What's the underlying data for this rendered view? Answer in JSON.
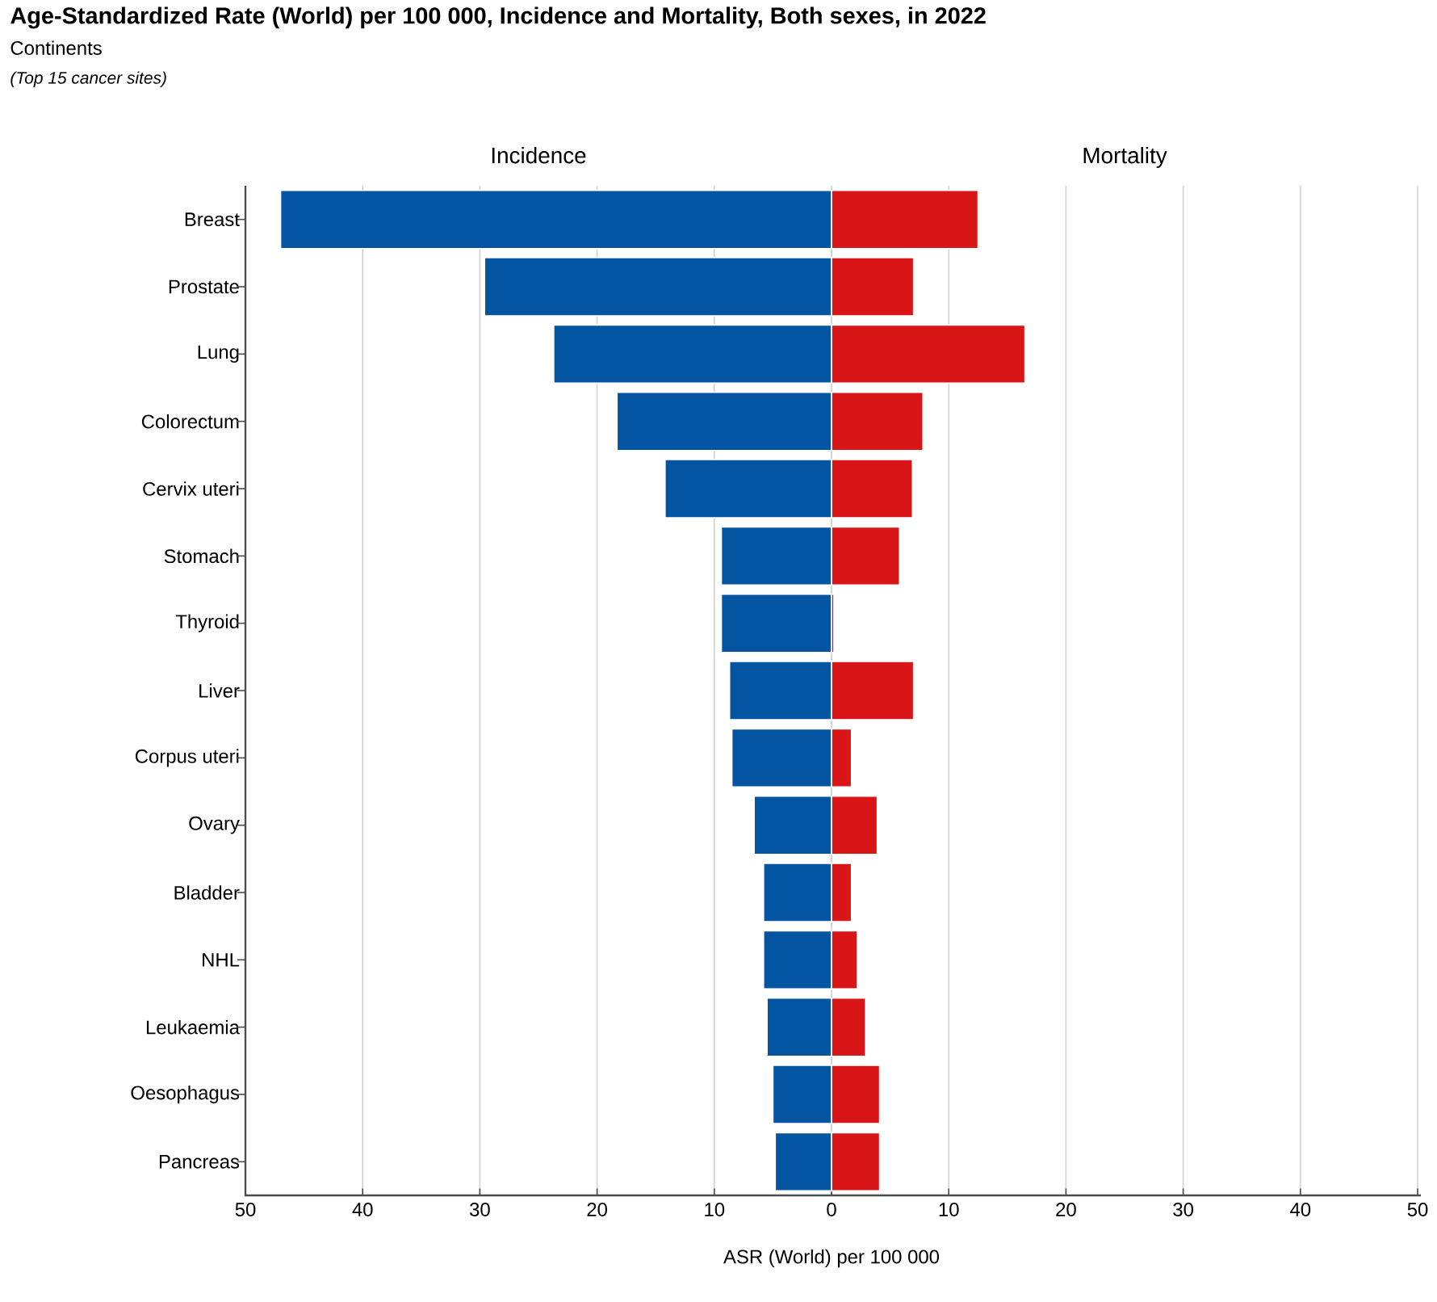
{
  "chart_data": [
    {
      "type": "other",
      "title": "Age-Standardized Rate (World) per 100 000, Incidence and Mortality, Both sexes, in 2022",
      "subtitle": "Continents",
      "annotations": [
        "(Top 15 cancer sites)"
      ]
    },
    {
      "type": "bar",
      "orientation": "horizontal",
      "title": "Incidence",
      "xlabel": "ASR (World) per 100 000",
      "categories": [
        "Breast",
        "Prostate",
        "Lung",
        "Colorectum",
        "Cervix uteri",
        "Stomach",
        "Thyroid",
        "Liver",
        "Corpus uteri",
        "Ovary",
        "Bladder",
        "NHL",
        "Leukaemia",
        "Oesophagus",
        "Pancreas"
      ],
      "values": [
        47.0,
        29.6,
        23.7,
        18.3,
        14.2,
        9.4,
        9.4,
        8.7,
        8.5,
        6.6,
        5.8,
        5.8,
        5.5,
        5.0,
        4.8
      ],
      "color": "#0455a1",
      "xlim": [
        50,
        0
      ],
      "xticks": [
        50,
        40,
        30,
        20,
        10,
        0
      ],
      "grid": "x"
    },
    {
      "type": "bar",
      "orientation": "horizontal",
      "title": "Mortality",
      "tick_labels": "x",
      "categories": [
        null,
        null,
        null,
        null,
        null,
        null,
        null,
        null,
        null,
        null,
        null,
        null,
        null,
        null,
        null
      ],
      "values": [
        12.5,
        7.0,
        16.5,
        7.8,
        6.9,
        5.8,
        0.2,
        7.0,
        1.7,
        3.9,
        1.7,
        2.2,
        2.9,
        4.1,
        4.1
      ],
      "color": "#d81517",
      "xlim": [
        0,
        50
      ],
      "xticks": [
        {
          "value": 0,
          "label": null
        },
        10,
        20,
        30,
        40,
        50
      ],
      "grid": "x"
    }
  ]
}
